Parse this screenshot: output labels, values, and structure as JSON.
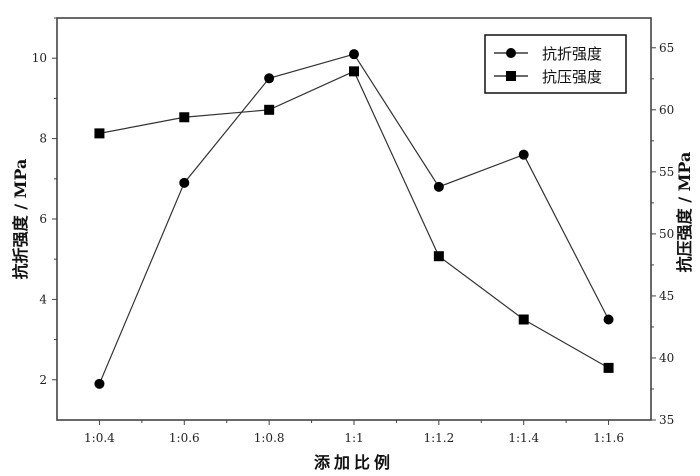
{
  "chart_data": {
    "type": "line",
    "title": "",
    "xlabel": "添加比例",
    "ylabel_left": "抗折强度 / MPa",
    "ylabel_right": "抗压强度 / MPa",
    "categories": [
      "1:0.4",
      "1:0.6",
      "1:0.8",
      "1:1",
      "1:1.2",
      "1:1.4",
      "1:1.6"
    ],
    "ylim_left": [
      1,
      11
    ],
    "ylim_right": [
      35,
      67.4
    ],
    "yticks_left": [
      2,
      4,
      6,
      8,
      10
    ],
    "yticks_right": [
      35,
      40,
      45,
      50,
      55,
      60,
      65
    ],
    "grid": false,
    "legend_position": "top-right",
    "series": [
      {
        "name": "抗折强度",
        "axis": "left",
        "marker": "circle",
        "color": "#000000",
        "values": [
          1.9,
          6.9,
          9.5,
          10.1,
          6.8,
          7.6,
          3.5
        ]
      },
      {
        "name": "抗压强度",
        "axis": "right",
        "marker": "square",
        "color": "#000000",
        "values": [
          58.1,
          59.4,
          60.0,
          63.1,
          48.2,
          43.1,
          39.2
        ]
      }
    ]
  }
}
